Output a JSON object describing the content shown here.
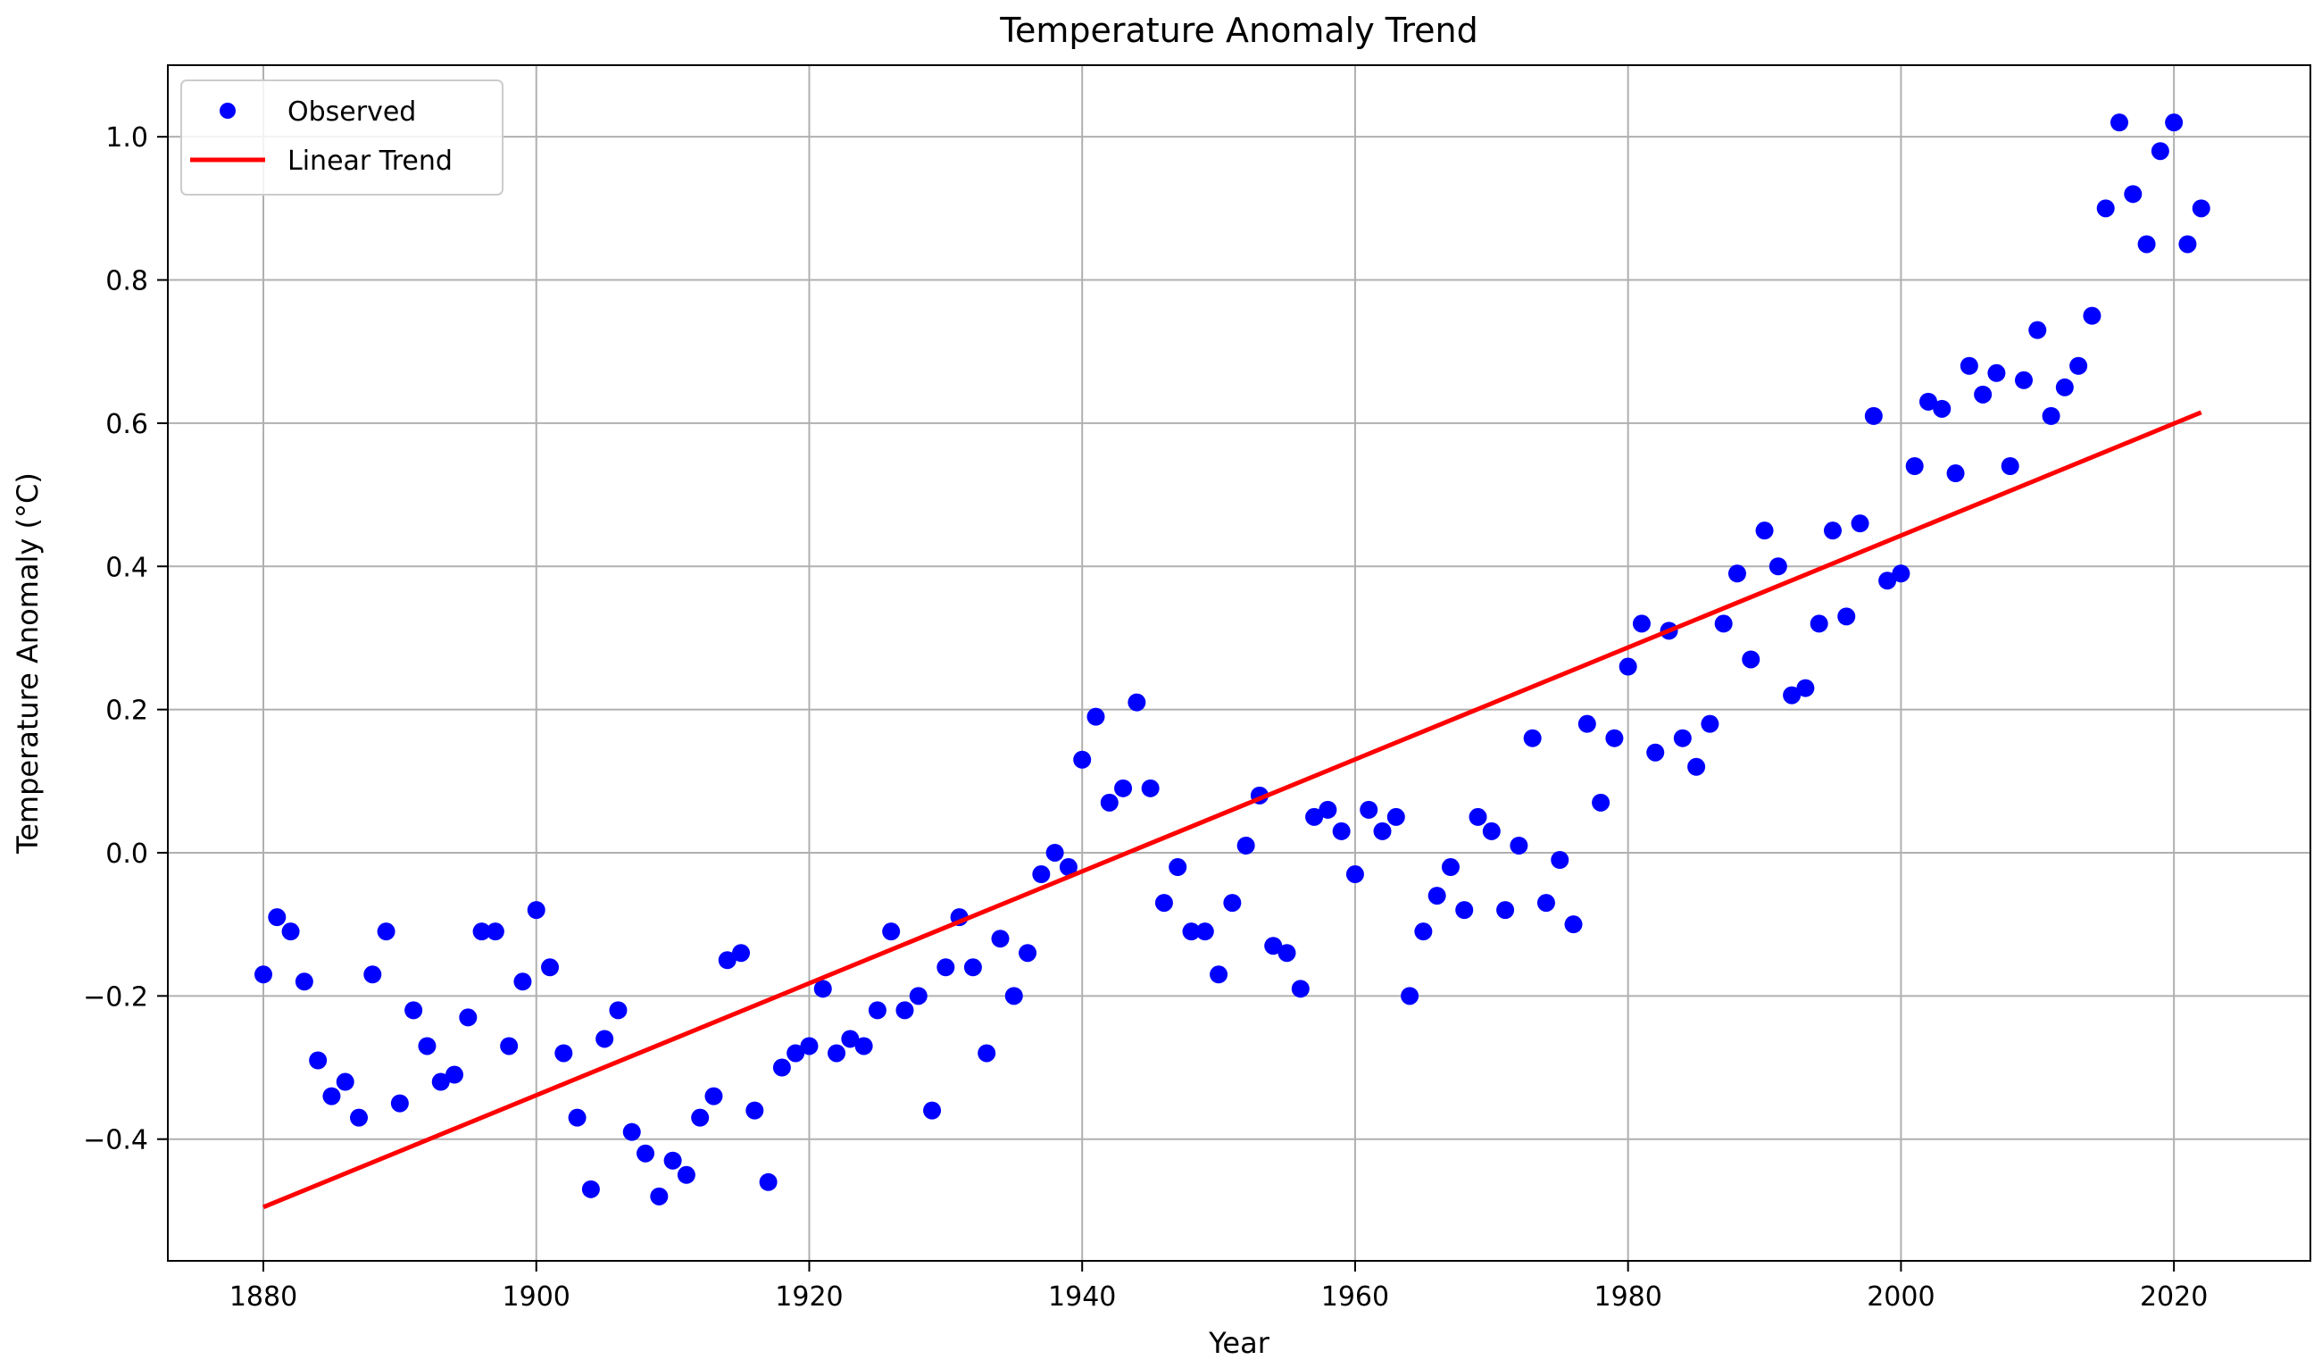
{
  "chart_data": {
    "type": "scatter",
    "title": "Temperature Anomaly Trend",
    "xlabel": "Year",
    "ylabel": "Temperature Anomaly (°C)",
    "xlim": [
      1873,
      2030
    ],
    "ylim": [
      -0.57,
      1.1
    ],
    "xticks": [
      1880,
      1900,
      1920,
      1940,
      1960,
      1980,
      2000,
      2020
    ],
    "yticks": [
      -0.4,
      -0.2,
      0.0,
      0.2,
      0.4,
      0.6,
      0.8,
      1.0
    ],
    "xtick_labels": [
      "1880",
      "1900",
      "1920",
      "1940",
      "1960",
      "1980",
      "2000",
      "2020"
    ],
    "ytick_labels": [
      "−0.4",
      "−0.2",
      "0.0",
      "0.2",
      "0.4",
      "0.6",
      "0.8",
      "1.0"
    ],
    "grid": true,
    "legend_position": "top-left",
    "series": [
      {
        "name": "Observed",
        "kind": "scatter",
        "color": "#0000ff",
        "x": [
          1880,
          1881,
          1882,
          1883,
          1884,
          1885,
          1886,
          1887,
          1888,
          1889,
          1890,
          1891,
          1892,
          1893,
          1894,
          1895,
          1896,
          1897,
          1898,
          1899,
          1900,
          1901,
          1902,
          1903,
          1904,
          1905,
          1906,
          1907,
          1908,
          1909,
          1910,
          1911,
          1912,
          1913,
          1914,
          1915,
          1916,
          1917,
          1918,
          1919,
          1920,
          1921,
          1922,
          1923,
          1924,
          1925,
          1926,
          1927,
          1928,
          1929,
          1930,
          1931,
          1932,
          1933,
          1934,
          1935,
          1936,
          1937,
          1938,
          1939,
          1940,
          1941,
          1942,
          1943,
          1944,
          1945,
          1946,
          1947,
          1948,
          1949,
          1950,
          1951,
          1952,
          1953,
          1954,
          1955,
          1956,
          1957,
          1958,
          1959,
          1960,
          1961,
          1962,
          1963,
          1964,
          1965,
          1966,
          1967,
          1968,
          1969,
          1970,
          1971,
          1972,
          1973,
          1974,
          1975,
          1976,
          1977,
          1978,
          1979,
          1980,
          1981,
          1982,
          1983,
          1984,
          1985,
          1986,
          1987,
          1988,
          1989,
          1990,
          1991,
          1992,
          1993,
          1994,
          1995,
          1996,
          1997,
          1998,
          1999,
          2000,
          2001,
          2002,
          2003,
          2004,
          2005,
          2006,
          2007,
          2008,
          2009,
          2010,
          2011,
          2012,
          2013,
          2014,
          2015,
          2016,
          2017,
          2018,
          2019,
          2020,
          2021,
          2022
        ],
        "y": [
          -0.17,
          -0.09,
          -0.11,
          -0.18,
          -0.29,
          -0.34,
          -0.32,
          -0.37,
          -0.17,
          -0.11,
          -0.35,
          -0.22,
          -0.27,
          -0.32,
          -0.31,
          -0.23,
          -0.11,
          -0.11,
          -0.27,
          -0.18,
          -0.08,
          -0.16,
          -0.28,
          -0.37,
          -0.47,
          -0.26,
          -0.22,
          -0.39,
          -0.42,
          -0.48,
          -0.43,
          -0.45,
          -0.37,
          -0.34,
          -0.15,
          -0.14,
          -0.36,
          -0.46,
          -0.3,
          -0.28,
          -0.27,
          -0.19,
          -0.28,
          -0.26,
          -0.27,
          -0.22,
          -0.11,
          -0.22,
          -0.2,
          -0.36,
          -0.16,
          -0.09,
          -0.16,
          -0.28,
          -0.12,
          -0.2,
          -0.14,
          -0.03,
          0.0,
          -0.02,
          0.13,
          0.19,
          0.07,
          0.09,
          0.21,
          0.09,
          -0.07,
          -0.02,
          -0.11,
          -0.11,
          -0.17,
          -0.07,
          0.01,
          0.08,
          -0.13,
          -0.14,
          -0.19,
          0.05,
          0.06,
          0.03,
          -0.03,
          0.06,
          0.03,
          0.05,
          -0.2,
          -0.11,
          -0.06,
          -0.02,
          -0.08,
          0.05,
          0.03,
          -0.08,
          0.01,
          0.16,
          -0.07,
          -0.01,
          -0.1,
          0.18,
          0.07,
          0.16,
          0.26,
          0.32,
          0.14,
          0.31,
          0.16,
          0.12,
          0.18,
          0.32,
          0.39,
          0.27,
          0.45,
          0.4,
          0.22,
          0.23,
          0.32,
          0.45,
          0.33,
          0.46,
          0.61,
          0.38,
          0.39,
          0.54,
          0.63,
          0.62,
          0.53,
          0.68,
          0.64,
          0.67,
          0.54,
          0.66,
          0.73,
          0.61,
          0.65,
          0.68,
          0.75,
          0.9,
          1.02,
          0.92,
          0.85,
          0.98,
          1.02,
          0.85,
          0.9
        ]
      },
      {
        "name": "Linear Trend",
        "kind": "line",
        "color": "#ff0000",
        "x": [
          1880,
          2022
        ],
        "y": [
          -0.495,
          0.615
        ]
      }
    ]
  }
}
